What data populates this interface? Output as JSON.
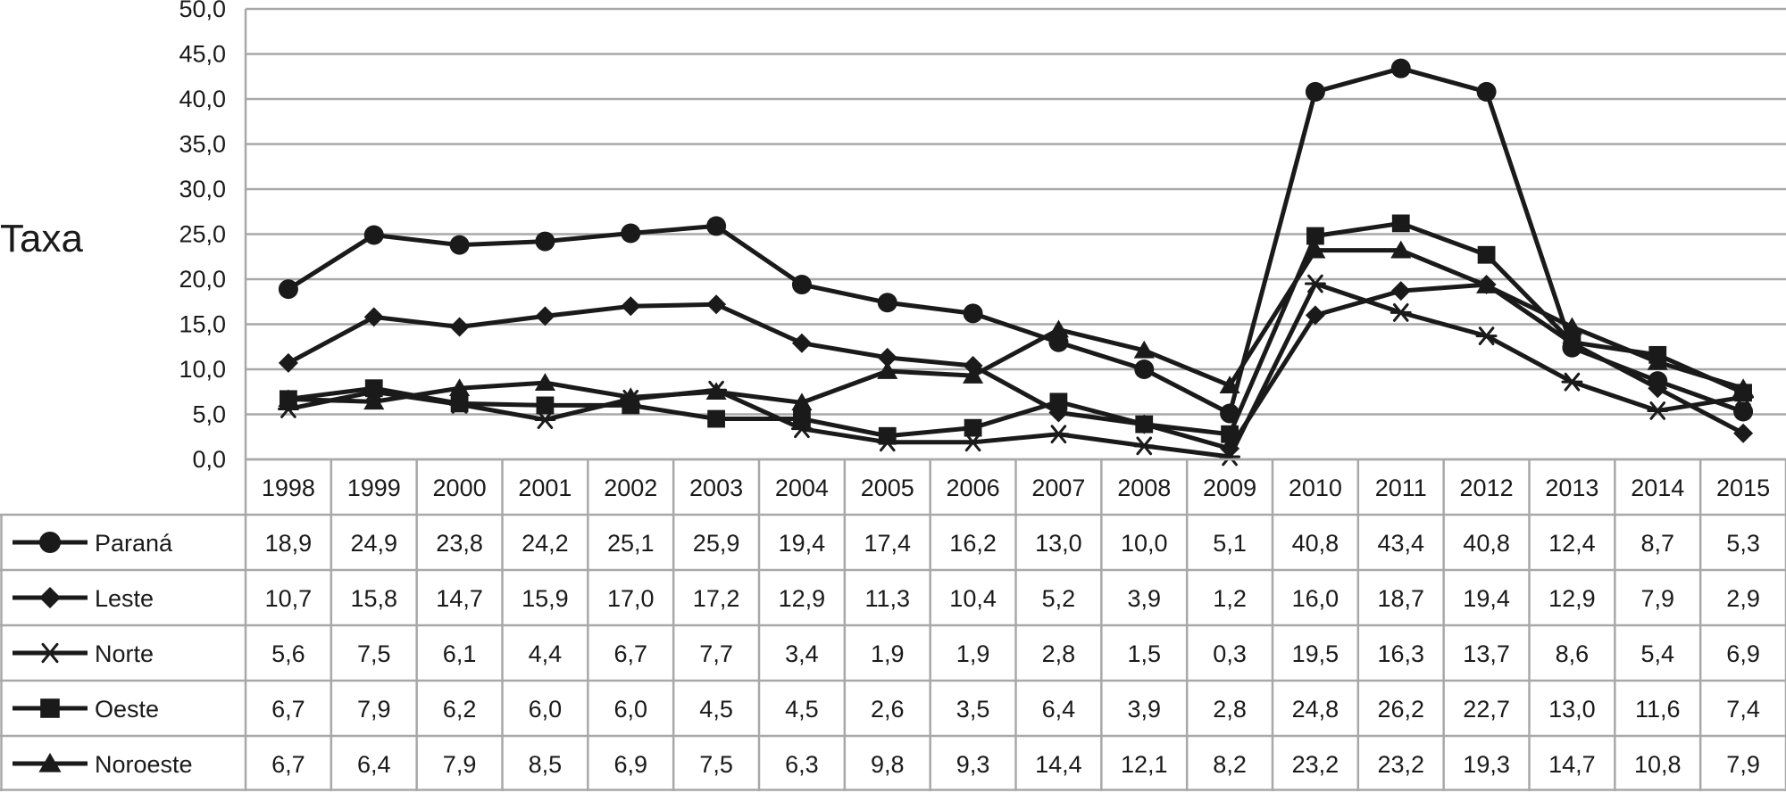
{
  "chart_data": {
    "type": "line",
    "title": "",
    "xlabel": "",
    "ylabel": "Taxa",
    "ylim": [
      0,
      50
    ],
    "y_ticks": [
      "0,0",
      "5,0",
      "10,0",
      "15,0",
      "20,0",
      "25,0",
      "30,0",
      "35,0",
      "40,0",
      "45,0",
      "50,0"
    ],
    "categories": [
      "1998",
      "1999",
      "2000",
      "2001",
      "2002",
      "2003",
      "2004",
      "2005",
      "2006",
      "2007",
      "2008",
      "2009",
      "2010",
      "2011",
      "2012",
      "2013",
      "2014",
      "2015"
    ],
    "grid": "horizontal",
    "legend": "data-table-below",
    "series_color": "#1a1a1a",
    "series": [
      {
        "name": "Paraná",
        "marker": "circle",
        "values": [
          18.9,
          24.9,
          23.8,
          24.2,
          25.1,
          25.9,
          19.4,
          17.4,
          16.2,
          13.0,
          10.0,
          5.1,
          40.8,
          43.4,
          40.8,
          12.4,
          8.7,
          5.3
        ],
        "labels": [
          "18,9",
          "24,9",
          "23,8",
          "24,2",
          "25,1",
          "25,9",
          "19,4",
          "17,4",
          "16,2",
          "13,0",
          "10,0",
          "5,1",
          "40,8",
          "43,4",
          "40,8",
          "12,4",
          "8,7",
          "5,3"
        ]
      },
      {
        "name": "Leste",
        "marker": "diamond",
        "values": [
          10.7,
          15.8,
          14.7,
          15.9,
          17.0,
          17.2,
          12.9,
          11.3,
          10.4,
          5.2,
          3.9,
          1.2,
          16.0,
          18.7,
          19.4,
          12.9,
          7.9,
          2.9
        ],
        "labels": [
          "10,7",
          "15,8",
          "14,7",
          "15,9",
          "17,0",
          "17,2",
          "12,9",
          "11,3",
          "10,4",
          "5,2",
          "3,9",
          "1,2",
          "16,0",
          "18,7",
          "19,4",
          "12,9",
          "7,9",
          "2,9"
        ]
      },
      {
        "name": "Norte",
        "marker": "asterisk",
        "values": [
          5.6,
          7.5,
          6.1,
          4.4,
          6.7,
          7.7,
          3.4,
          1.9,
          1.9,
          2.8,
          1.5,
          0.3,
          19.5,
          16.3,
          13.7,
          8.6,
          5.4,
          6.9
        ],
        "labels": [
          "5,6",
          "7,5",
          "6,1",
          "4,4",
          "6,7",
          "7,7",
          "3,4",
          "1,9",
          "1,9",
          "2,8",
          "1,5",
          "0,3",
          "19,5",
          "16,3",
          "13,7",
          "8,6",
          "5,4",
          "6,9"
        ]
      },
      {
        "name": "Oeste",
        "marker": "square",
        "values": [
          6.7,
          7.9,
          6.2,
          6.0,
          6.0,
          4.5,
          4.5,
          2.6,
          3.5,
          6.4,
          3.9,
          2.8,
          24.8,
          26.2,
          22.7,
          13.0,
          11.6,
          7.4
        ],
        "labels": [
          "6,7",
          "7,9",
          "6,2",
          "6,0",
          "6,0",
          "4,5",
          "4,5",
          "2,6",
          "3,5",
          "6,4",
          "3,9",
          "2,8",
          "24,8",
          "26,2",
          "22,7",
          "13,0",
          "11,6",
          "7,4"
        ]
      },
      {
        "name": "Noroeste",
        "marker": "triangle",
        "values": [
          6.7,
          6.4,
          7.9,
          8.5,
          6.9,
          7.5,
          6.3,
          9.8,
          9.3,
          14.4,
          12.1,
          8.2,
          23.2,
          23.2,
          19.3,
          14.7,
          10.8,
          7.9
        ],
        "labels": [
          "6,7",
          "6,4",
          "7,9",
          "8,5",
          "6,9",
          "7,5",
          "6,3",
          "9,8",
          "9,3",
          "14,4",
          "12,1",
          "8,2",
          "23,2",
          "23,2",
          "19,3",
          "14,7",
          "10,8",
          "7,9"
        ]
      }
    ]
  }
}
